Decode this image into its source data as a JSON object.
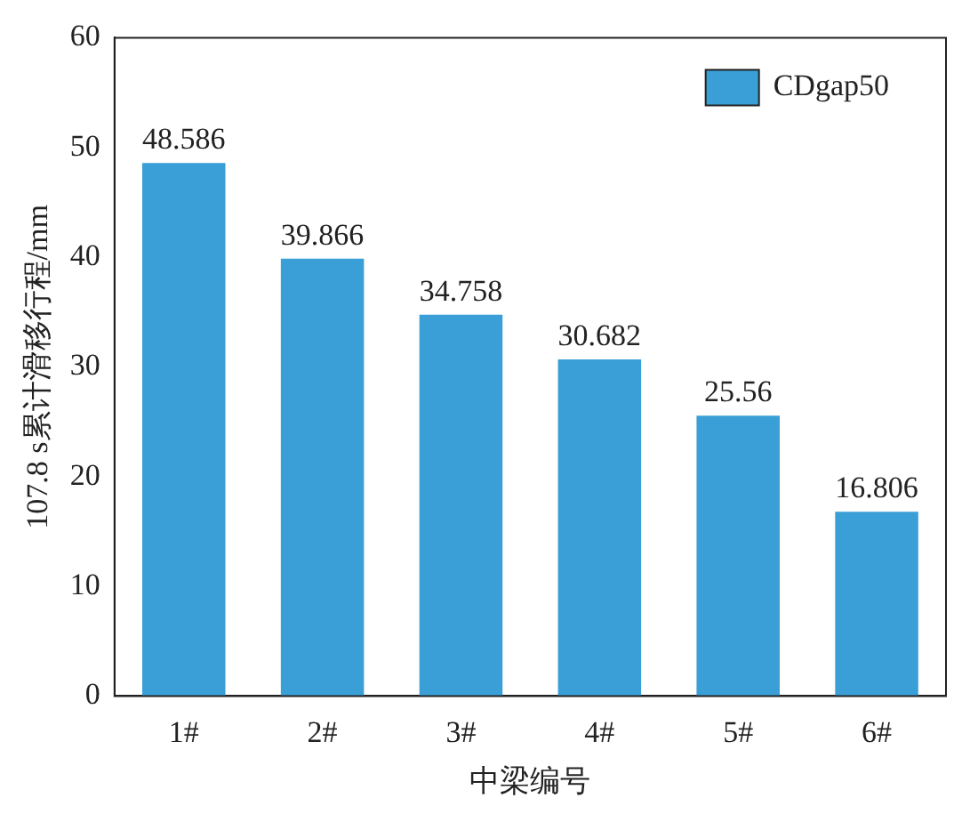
{
  "chart_data": {
    "type": "bar",
    "xlabel": "中梁编号",
    "ylabel": "107.8 s累计滑移行程/mm",
    "categories": [
      "1#",
      "2#",
      "3#",
      "4#",
      "5#",
      "6#"
    ],
    "series": [
      {
        "name": "CDgap50",
        "color": "#3a9fd6",
        "values": [
          48.586,
          39.866,
          34.758,
          30.682,
          25.56,
          16.806
        ]
      }
    ],
    "ylim": [
      0,
      60
    ],
    "yticks": [
      0,
      10,
      20,
      30,
      40,
      50,
      60
    ],
    "grid": false,
    "legend": "top right",
    "data_labels": true
  }
}
